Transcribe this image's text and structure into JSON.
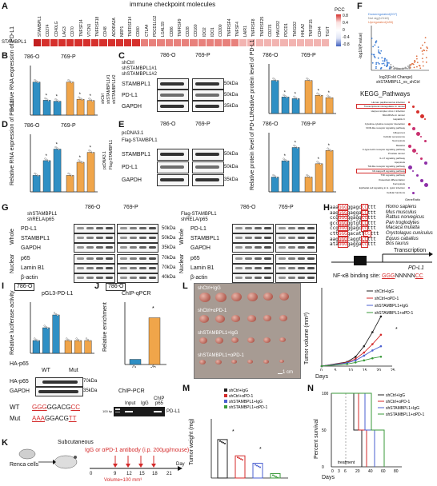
{
  "panel_labels": [
    "A",
    "B",
    "C",
    "D",
    "E",
    "F",
    "G",
    "H",
    "I",
    "J",
    "K",
    "L",
    "M",
    "N"
  ],
  "panelA": {
    "title": "immune checkpoint molecules",
    "row_label": "STAMBPL1",
    "legend_title": "PCC",
    "legend_ticks": [
      "0.8",
      "0.4",
      "0",
      "-0.4",
      "-0.8"
    ],
    "genes": [
      "STAMBPL1",
      "CD274",
      "CD40LG",
      "LAG3",
      "CD70",
      "TNFSF14",
      "VTCN1",
      "TNFRSF18",
      "CD48",
      "ADORA2A",
      "NRP1",
      "TNFRSF14",
      "CD80",
      "CTLA4",
      "PDCD1LG2",
      "LGALS9",
      "CD86",
      "TNFRSF9",
      "CD28",
      "CD160",
      "IDO2",
      "IDO1",
      "CD200",
      "TNFRSF4",
      "TNFSF4",
      "LAIR1",
      "TNFRSF8",
      "TNFRSF25",
      "CD276",
      "HAVCR2",
      "PDCD1",
      "TMIGD2",
      "HHLA2",
      "TNFSF15",
      "CD44",
      "TIGIT"
    ],
    "colors": {
      "high": "#d6302c",
      "mid": "#f5c6c4",
      "low": "#3f5fbf"
    }
  },
  "cells": {
    "c786": "786-O",
    "c769": "769-P"
  },
  "panelB": {
    "ylabel": "Relative RNA expression of PD-L1",
    "legend": [
      "shCtrl",
      "shSTAMBPL1#1",
      "shSTAMBPL1#2"
    ],
    "chart_data": {
      "type": "bar",
      "categories": [
        "shCtrl",
        "sh#1",
        "sh#2",
        "shCtrl",
        "sh#1",
        "sh#2"
      ],
      "values": [
        1.0,
        0.45,
        0.42,
        1.0,
        0.48,
        0.44
      ],
      "ylim": [
        0,
        1.5
      ]
    }
  },
  "panelC": {
    "rows": [
      "shCtrl",
      "shSTAMBPL1#1",
      "shSTAMBPL1#2"
    ],
    "blots": [
      "STAMBPL1",
      "PD-L1",
      "GAPDH"
    ],
    "kda": [
      "50kDa",
      "50kDa",
      "35kDa"
    ],
    "ylabel": "Relative protein level of PD-L1",
    "chart_data": {
      "type": "bar",
      "categories": [
        "shCtrl",
        "sh#1",
        "sh#2",
        "shCtrl",
        "sh#1",
        "sh#2"
      ],
      "values": [
        1.0,
        0.5,
        0.45,
        1.0,
        0.55,
        0.48
      ],
      "ylim": [
        0,
        1.5
      ]
    }
  },
  "panelD": {
    "ylabel": "Relative RNA expression of PD-L1",
    "legend": [
      "pcDNA3.1",
      "Flag-STAMBPL1"
    ],
    "chart_data": {
      "type": "bar",
      "categories": [
        "pc",
        "F1",
        "F2",
        "pc",
        "F1",
        "F2"
      ],
      "values": [
        1.0,
        1.9,
        2.6,
        1.0,
        1.8,
        2.4
      ],
      "ylim": [
        0,
        3.5
      ]
    }
  },
  "panelE": {
    "rows": [
      "pcDNA3.1",
      "Flag-STAMBPL1"
    ],
    "blots": [
      "STAMBPL1",
      "PD-L1",
      "GAPDH"
    ],
    "kda": [
      "50kDa",
      "50kDa",
      "35kDa"
    ],
    "ylabel": "Relative protein level of PD-L1",
    "chart_data": {
      "type": "bar",
      "categories": [
        "pc",
        "F1",
        "F2",
        "pc",
        "F1",
        "F2"
      ],
      "values": [
        1.0,
        2.1,
        3.0,
        1.0,
        1.9,
        2.8
      ],
      "ylim": [
        0,
        4
      ]
    }
  },
  "panelF": {
    "legend": [
      "Downregulated(207)",
      "Not sig(12118)",
      "Upregulated(185)"
    ],
    "xlabel": "log2(Fold Change)",
    "subtitle": "shSTAMBPL1_vs_shCtrl",
    "ylabel": "-log10(P.value)",
    "kegg_title": "KEGG_Pathways",
    "pathways": [
      "Human papillomavirus infection",
      "Transcriptional misregulation in cancer",
      "Herpes simplex virus 1 infection",
      "MicroRNAs in cancer",
      "Hepatitis C",
      "Cytokine-cytokine receptor interaction",
      "NOD-like receptor signaling pathway",
      "Influenza A",
      "Cellular senescence",
      "Necroptosis",
      "Measles",
      "C-type lectin receptor signaling pathway",
      "Prostate cancer",
      "IL-17 signaling pathway",
      "Apoptosis",
      "Toll-like receptor signaling pathway",
      "NF-kappa B signaling pathway",
      "TNF signaling pathway",
      "Osteoclast differentiation",
      "Ferroptosis",
      "Epithelial cell signaling in H. pylori infection",
      "Cellular functions",
      "GeneRatio"
    ]
  },
  "panelG": {
    "rows_left": [
      "shSTAMBPL1",
      "shRELA/p65"
    ],
    "rows_right": [
      "Flag-STAMBPL1",
      "shRELA/p65"
    ],
    "whole_blots": [
      "PD-L1",
      "STAMBPL1",
      "GAPDH"
    ],
    "nuclear_blots": [
      "p65",
      "Lamin B1",
      "β-actin"
    ],
    "section_whole": "Whole",
    "section_nuclear": "Nuclear",
    "kda": [
      "50kDa",
      "50kDa",
      "35kDa",
      "70kDa",
      "70kDa",
      "40kDa"
    ]
  },
  "panelH": {
    "sequences": [
      "aaaGGGggagcCCttt",
      "aagGGGgaggaCCttt",
      "ccgGGGggaggCCttt",
      "gccGGGggtgtCCttt",
      "ccgGGGggagcCCttt",
      "cttGGGgacattCCttt",
      "aagGGGcaggtCCttt",
      "ataGGGgaggaCCttt"
    ],
    "species": [
      "Homo sapiens",
      "Mus musculus",
      "Rattus norvegicus",
      "Pan troglodytes",
      "Macaca mulatta",
      "Oryctolagus cuniculus",
      "Equus caballus",
      "Bos taurus"
    ],
    "transcription": "Transcription",
    "gene": "PD-L1",
    "binding_prefix": "NF-κB binding site: ",
    "binding_a": "GGG",
    "binding_mid": "NNNNN",
    "binding_b": "CC"
  },
  "panelI": {
    "cell": "786-O",
    "title": "pGL3-PD-L1",
    "ylabel": "Relative luciferase activity",
    "xlabel": "HA-p65",
    "groups": [
      "WT",
      "Mut"
    ],
    "blots": [
      "HA-p65",
      "GAPDH"
    ],
    "kda": [
      "70kDa",
      "35kDa"
    ],
    "wt_label": "WT",
    "mut_label": "Mut",
    "wt_seq_a": "GGG",
    "wt_seq_mid": "GGACG",
    "wt_seq_b": "CC",
    "mut_seq_a": "AAA",
    "mut_seq_mid": "GGACG",
    "mut_seq_b": "TT",
    "chart_data": {
      "type": "bar",
      "categories": [
        "WT-0",
        "WT-1",
        "WT-2",
        "Mut-0",
        "Mut-1",
        "Mut-2"
      ],
      "values": [
        1.0,
        2.0,
        3.0,
        1.0,
        1.0,
        1.0
      ],
      "ylim": [
        0,
        4
      ]
    }
  },
  "panelJ": {
    "cell": "786-O",
    "title": "ChIP-qPCR",
    "ylabel": "Relative enrichment",
    "pcr_title": "ChIP-PCR",
    "pcr_header": "ChIP",
    "lanes": [
      "Input",
      "IgG",
      "p65"
    ],
    "marker": "100 bp",
    "band_label": "PD-L1",
    "chart_data": {
      "type": "bar",
      "categories": [
        "IgG",
        "p65"
      ],
      "values": [
        1.0,
        9.0
      ],
      "ylim": [
        0,
        12
      ]
    }
  },
  "panelK": {
    "cells": "Renca cells",
    "route": "Subcutaneous",
    "treatment": "IgG or αPD-1 antibody (i.p. 200μg/mouse)",
    "days": [
      "0",
      "9",
      "12",
      "15",
      "18",
      "21"
    ],
    "day_label": "Day",
    "volume_note": "Volume=100 mm³"
  },
  "panelL": {
    "groups": [
      "shCtrl+IgG",
      "shCtrl+αPD-1",
      "shSTAMBPL1+IgG",
      "shSTAMBPL1+αPD-1"
    ],
    "scale": "1 cm",
    "ylabel": "Tumor volume (mm³)",
    "xlabel": "Days",
    "xticks": [
      "0",
      "5",
      "10",
      "15",
      "20",
      "25"
    ],
    "chart_data": {
      "type": "line",
      "x": [
        0,
        9,
        12,
        15,
        18,
        21
      ],
      "series": [
        {
          "name": "shCtrl+IgG",
          "values": [
            0,
            80,
            180,
            380,
            650,
            950
          ]
        },
        {
          "name": "shCtrl+αPD-1",
          "values": [
            0,
            70,
            140,
            260,
            420,
            600
          ]
        },
        {
          "name": "shSTAMBPL1+IgG",
          "values": [
            0,
            60,
            110,
            200,
            300,
            380
          ]
        },
        {
          "name": "shSTAMBPL1+αPD-1",
          "values": [
            0,
            40,
            70,
            110,
            150,
            180
          ]
        }
      ],
      "ylim": [
        0,
        1500
      ]
    },
    "colors": [
      "#222222",
      "#d42a2a",
      "#4a5fd0",
      "#3a9a3a"
    ]
  },
  "panelM": {
    "legend": [
      "shCtrl+IgG",
      "shCtrl+αPD-1",
      "shSTAMBPL1+IgG",
      "shSTAMBPL1+αPD-1"
    ],
    "ylabel": "Tumor weight (mg)",
    "chart_data": {
      "type": "bar",
      "categories": [
        "shCtrl+IgG",
        "shCtrl+αPD-1",
        "shSTAMBPL1+IgG",
        "shSTAMBPL1+αPD-1"
      ],
      "values": [
        520,
        300,
        200,
        60
      ],
      "ylim": [
        0,
        800
      ]
    }
  },
  "panelN": {
    "legend": [
      "shCtrl+IgG",
      "shCtrl+αPD-1",
      "shSTAMBPL1+IgG",
      "shSTAMBPL1+αPD-1"
    ],
    "ylabel": "Percent survival",
    "xlabel": "Days",
    "treatment": "treatment",
    "xticks": [
      "0",
      "3",
      "6",
      "20",
      "40",
      "60",
      "80"
    ],
    "yticks": [
      "0",
      "50",
      "100"
    ]
  },
  "stars": "*"
}
